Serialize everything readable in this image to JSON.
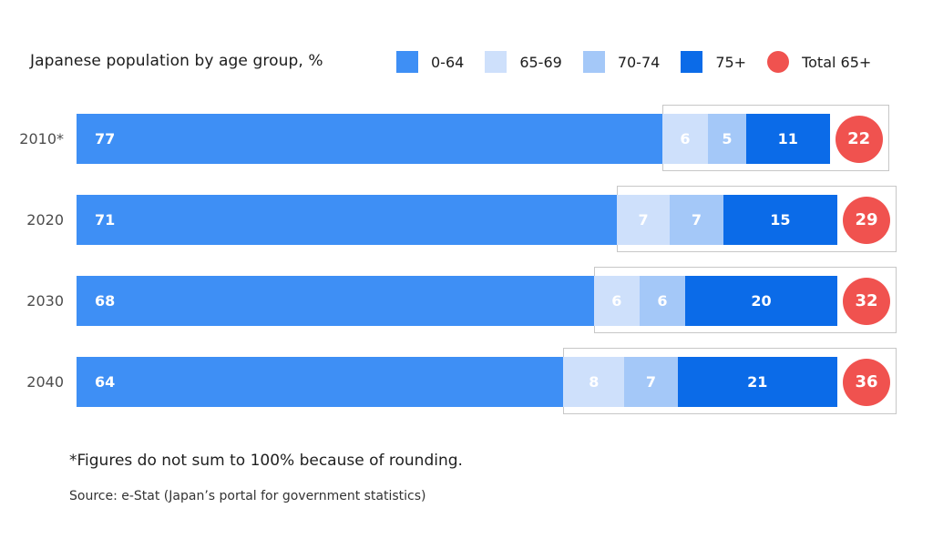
{
  "title": "Japanese population by age group, %",
  "legend": {
    "items": [
      {
        "label": "0-64",
        "color": "#3E8FF5",
        "shape": "square"
      },
      {
        "label": "65-69",
        "color": "#CEE0FB",
        "shape": "square"
      },
      {
        "label": "70-74",
        "color": "#A4C8F8",
        "shape": "square"
      },
      {
        "label": "75+",
        "color": "#0B6BE8",
        "shape": "square"
      },
      {
        "label": "Total 65+",
        "color": "#F0524F",
        "shape": "circle"
      }
    ]
  },
  "chart_data": {
    "type": "bar",
    "variant": "horizontal-stacked",
    "title": "Japanese population by age group, %",
    "categories": [
      "2010*",
      "2020",
      "2030",
      "2040"
    ],
    "series": [
      {
        "name": "0-64",
        "color": "#3E8FF5",
        "values": [
          77,
          71,
          68,
          64
        ]
      },
      {
        "name": "65-69",
        "color": "#CEE0FB",
        "values": [
          6,
          7,
          6,
          8
        ]
      },
      {
        "name": "70-74",
        "color": "#A4C8F8",
        "values": [
          5,
          7,
          6,
          7
        ]
      },
      {
        "name": "75+",
        "color": "#0B6BE8",
        "values": [
          11,
          15,
          20,
          21
        ]
      }
    ],
    "totals": {
      "name": "Total 65+",
      "color": "#F0524F",
      "values": [
        22,
        29,
        32,
        36
      ]
    },
    "unit": "%",
    "xlim": [
      0,
      100
    ],
    "grid": false,
    "legend_position": "top-right",
    "highlight_box_border_color": "#C7C7C7",
    "value_labels": "inside-white",
    "note": "65+ segments and total circle are framed by a light gray outline box per row"
  },
  "footnote": "*Figures do not sum to 100% because of rounding.",
  "source": "Source: e-Stat (Japan’s portal for government statistics)"
}
